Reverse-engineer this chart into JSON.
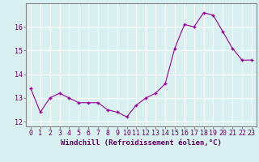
{
  "x": [
    0,
    1,
    2,
    3,
    4,
    5,
    6,
    7,
    8,
    9,
    10,
    11,
    12,
    13,
    14,
    15,
    16,
    17,
    18,
    19,
    20,
    21,
    22,
    23
  ],
  "y": [
    13.4,
    12.4,
    13.0,
    13.2,
    13.0,
    12.8,
    12.8,
    12.8,
    12.5,
    12.4,
    12.2,
    12.7,
    13.0,
    13.2,
    13.6,
    15.1,
    16.1,
    16.0,
    16.6,
    16.5,
    15.8,
    15.1,
    14.6,
    14.6
  ],
  "line_color": "#990099",
  "marker": "+",
  "marker_size": 3.5,
  "marker_color": "#990099",
  "bg_color": "#d8f0f0",
  "grid_color": "#b8d8d8",
  "axis_color": "#660066",
  "spine_color": "#888888",
  "xlabel": "Windchill (Refroidissement éolien,°C)",
  "xlabel_fontsize": 6.5,
  "tick_fontsize": 6,
  "yticks": [
    12,
    13,
    14,
    15,
    16
  ],
  "xticks": [
    0,
    1,
    2,
    3,
    4,
    5,
    6,
    7,
    8,
    9,
    10,
    11,
    12,
    13,
    14,
    15,
    16,
    17,
    18,
    19,
    20,
    21,
    22,
    23
  ],
  "ylim": [
    11.8,
    17.0
  ],
  "xlim": [
    -0.5,
    23.5
  ]
}
